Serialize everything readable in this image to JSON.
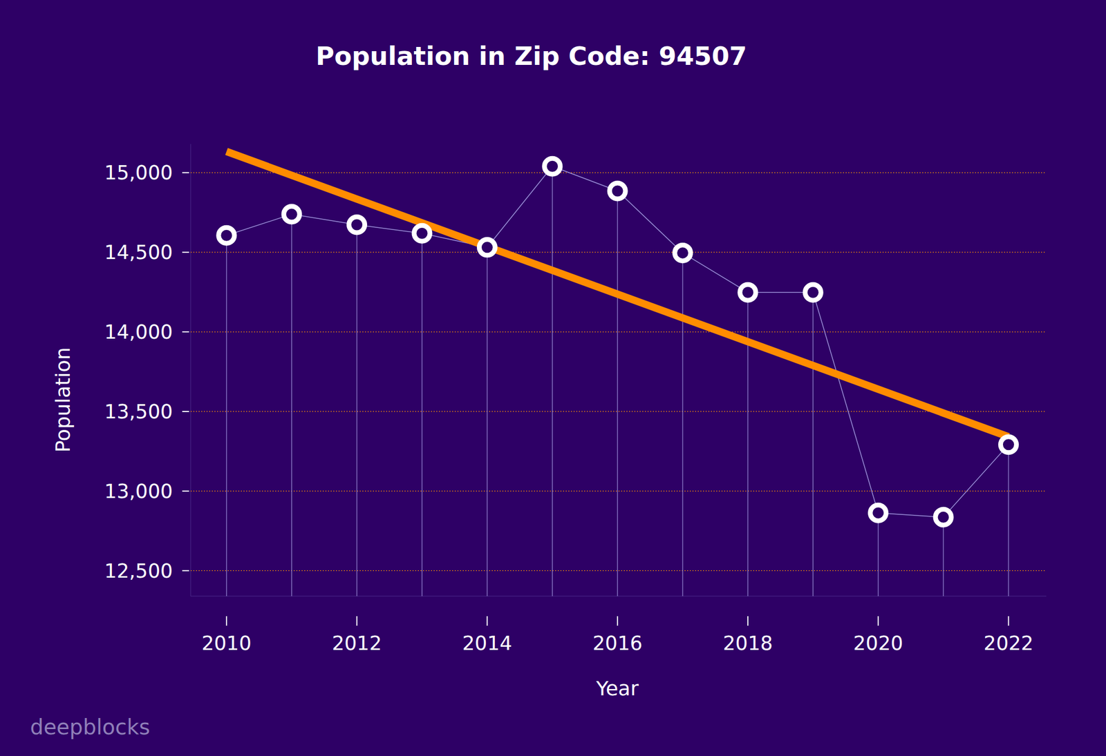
{
  "chart_data": {
    "type": "line",
    "title": "Population in Zip Code: 94507",
    "x_label": "Year",
    "y_label": "Population",
    "watermark": "deepblocks",
    "x": [
      2010,
      2011,
      2012,
      2013,
      2014,
      2015,
      2016,
      2017,
      2018,
      2019,
      2020,
      2021,
      2022
    ],
    "series": [
      {
        "name": "Population",
        "color": "#9b8fd8",
        "marker": "circle",
        "values": [
          14606,
          14739,
          14673,
          14619,
          14531,
          15040,
          14885,
          14496,
          14248,
          14248,
          12863,
          12836,
          13292
        ]
      }
    ],
    "trend_line": {
      "x": [
        2010,
        2022
      ],
      "values": [
        15133,
        13341
      ],
      "color": "#ff8c00"
    },
    "xlim": [
      2009.45,
      2022.58
    ],
    "xticks": [
      2010,
      2012,
      2014,
      2016,
      2018,
      2020,
      2022
    ],
    "ylim": [
      12340,
      15180
    ],
    "yticks": [
      {
        "value": 12500,
        "label": "12,500"
      },
      {
        "value": 13000,
        "label": "13,000"
      },
      {
        "value": 13500,
        "label": "13,500"
      },
      {
        "value": 14000,
        "label": "14,000"
      },
      {
        "value": 14500,
        "label": "14,500"
      },
      {
        "value": 15000,
        "label": "15,000"
      }
    ],
    "grid": true
  }
}
